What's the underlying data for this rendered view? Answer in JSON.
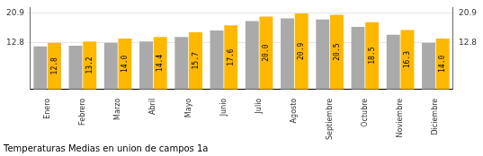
{
  "chart_data": {
    "type": "bar",
    "title": "Temperaturas Medias en union de campos 1a",
    "categories": [
      "Enero",
      "Febrero",
      "Marzo",
      "Abril",
      "Mayo",
      "Junio",
      "Julio",
      "Agosto",
      "Septiembre",
      "Octubre",
      "Noviembre",
      "Diciembre"
    ],
    "series": [
      {
        "color": "#AAAAAA",
        "values": [
          11.8,
          12.0,
          12.8,
          13.2,
          14.4,
          16.2,
          18.8,
          19.5,
          19.2,
          17.2,
          15.0,
          12.8
        ]
      },
      {
        "color": "#FFB800",
        "values": [
          12.8,
          13.2,
          14.0,
          14.4,
          15.7,
          17.6,
          20.0,
          20.9,
          20.5,
          18.5,
          16.3,
          14.0
        ],
        "data_labels": true,
        "value_labels": [
          "12.8",
          "13.2",
          "14.0",
          "14.4",
          "15.7",
          "17.6",
          "20.0",
          "20.9",
          "20.5",
          "18.5",
          "16.3",
          "14.0"
        ]
      }
    ],
    "ylim": [
      0,
      22.5
    ],
    "yticks": [
      12.8,
      20.9
    ],
    "y2lim": [
      0,
      22.5
    ],
    "y2ticks": [
      12.8,
      20.9
    ],
    "grid": true
  }
}
